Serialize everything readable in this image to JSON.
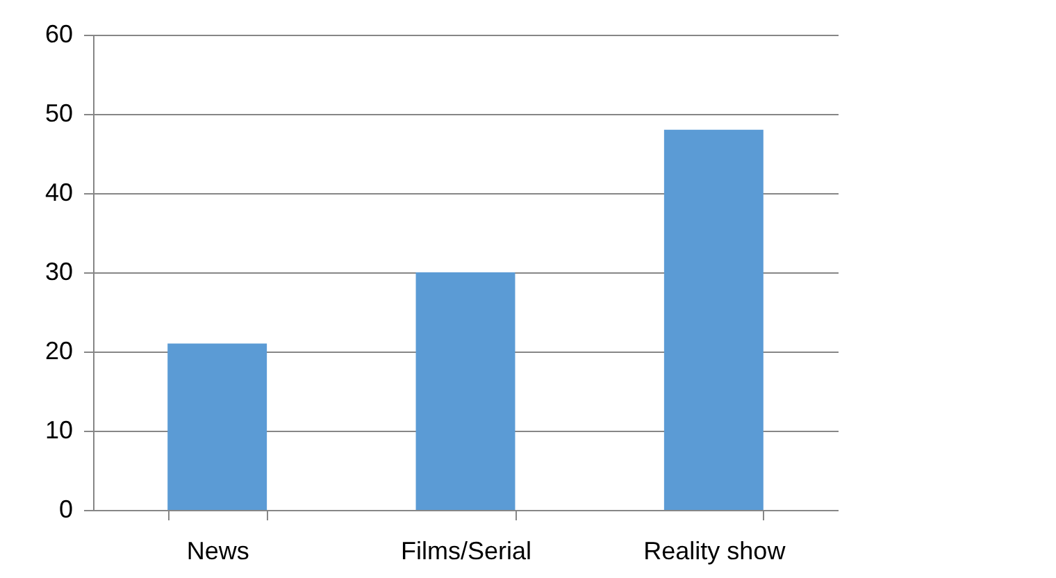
{
  "chart_data": {
    "type": "bar",
    "categories": [
      "News",
      "Films/Serial",
      "Reality show"
    ],
    "values": [
      21,
      30,
      48
    ],
    "color": "#5b9bd5",
    "ylim": [
      0,
      60
    ],
    "yticks": [
      0,
      10,
      20,
      30,
      40,
      50,
      60
    ],
    "grid": "y"
  }
}
